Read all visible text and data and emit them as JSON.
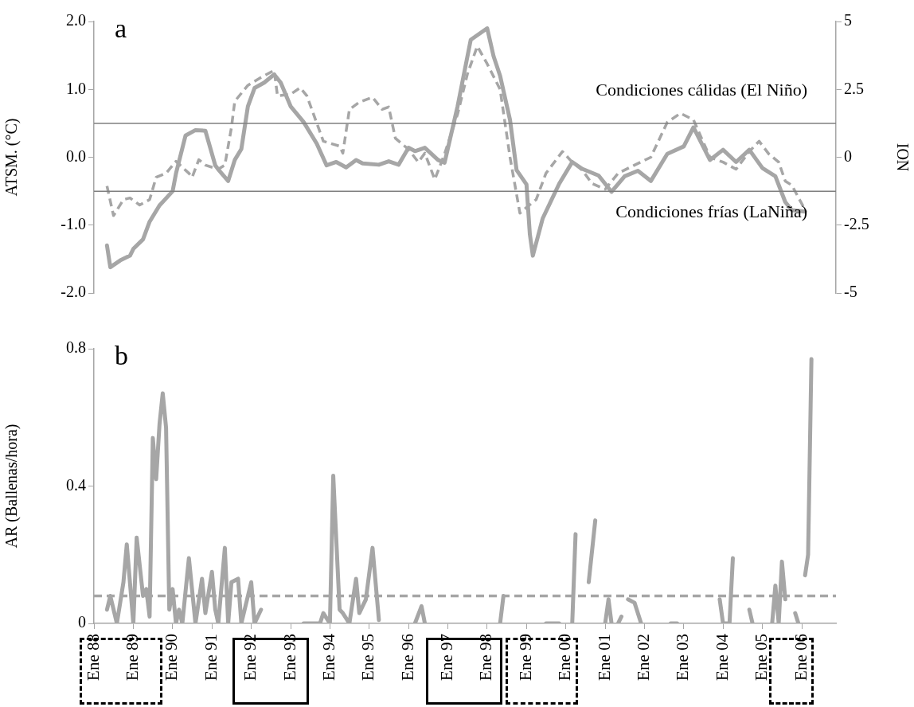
{
  "chart_data": [
    {
      "type": "line",
      "xlim": [
        "1988-01",
        "2006-11-15"
      ],
      "tick_labels": "y",
      "ylabel": "ATSM. (°C)",
      "y2label": "ION",
      "ylim": [
        -2,
        2
      ],
      "yticks": [
        {
          "value": -2,
          "label": "-2.0"
        },
        {
          "value": -1,
          "label": "-1.0"
        },
        {
          "value": 0,
          "label": "0.0"
        },
        {
          "value": 1,
          "label": "1.0"
        },
        {
          "value": 2,
          "label": "2.0"
        }
      ],
      "y2lim": [
        -5,
        5
      ],
      "y2ticks": [
        -5,
        -2.5,
        0,
        2.5,
        5
      ],
      "marker": "none",
      "series": [
        {
          "color": "#a6a6a6",
          "line_style": "solid",
          "axis": "y",
          "x": [
            "1988-05",
            "1988-06",
            "1988-09",
            "1988-12",
            "1989-01",
            "1989-04",
            "1989-06",
            "1989-09",
            "1990-01",
            "1990-02",
            "1990-05",
            "1990-08",
            "1990-11",
            "1991-02",
            "1991-03",
            "1991-06",
            "1991-08",
            "1991-10",
            "1991-12",
            "1992-02",
            "1992-05",
            "1992-08",
            "1992-10",
            "1993-01",
            "1993-05",
            "1993-09",
            "1993-12",
            "1994-03",
            "1994-06",
            "1994-09",
            "1994-11",
            "1995-04",
            "1995-07",
            "1995-10",
            "1996-01",
            "1996-03",
            "1996-06",
            "1996-10",
            "1996-12",
            "1997-04",
            "1997-08",
            "1998-01",
            "1998-03",
            "1998-05",
            "1998-08",
            "1998-10",
            "1999-01",
            "1999-02",
            "1999-03",
            "1999-06",
            "1999-11",
            "2000-03",
            "2000-06",
            "2000-11",
            "2001-03",
            "2001-07",
            "2001-11",
            "2002-03",
            "2002-08",
            "2003-01",
            "2003-04",
            "2003-09",
            "2004-01",
            "2004-05",
            "2004-09",
            "2005-01",
            "2005-05",
            "2005-08",
            "2005-10",
            "2006-02"
          ],
          "values": [
            -1.3,
            -1.62,
            -1.52,
            -1.45,
            -1.35,
            -1.21,
            -0.95,
            -0.71,
            -0.5,
            -0.24,
            0.32,
            0.4,
            0.39,
            -0.12,
            -0.18,
            -0.35,
            -0.04,
            0.12,
            0.75,
            1.02,
            1.1,
            1.22,
            1.1,
            0.75,
            0.52,
            0.2,
            -0.12,
            -0.07,
            -0.15,
            -0.04,
            -0.09,
            -0.11,
            -0.06,
            -0.11,
            0.14,
            0.09,
            0.14,
            -0.04,
            -0.08,
            0.75,
            1.73,
            1.9,
            1.49,
            1.2,
            0.55,
            -0.19,
            -0.4,
            -1.13,
            -1.45,
            -0.9,
            -0.39,
            -0.07,
            -0.17,
            -0.27,
            -0.51,
            -0.28,
            -0.2,
            -0.35,
            0.05,
            0.16,
            0.44,
            -0.04,
            0.11,
            -0.07,
            0.11,
            -0.16,
            -0.28,
            -0.66,
            -0.78,
            -0.8
          ]
        },
        {
          "color": "#a6a6a6",
          "line_style": "dashed",
          "axis": "y2",
          "x": [
            "1988-05",
            "1988-07",
            "1988-10",
            "1988-12",
            "1989-03",
            "1989-06",
            "1989-08",
            "1989-11",
            "1990-02",
            "1990-06",
            "1990-07",
            "1990-09",
            "1990-11",
            "1991-03",
            "1991-05",
            "1991-07",
            "1991-08",
            "1991-12",
            "1992-04",
            "1992-08",
            "1992-09",
            "1993-01",
            "1993-04",
            "1993-06",
            "1993-11",
            "1994-04",
            "1994-05",
            "1994-07",
            "1994-10",
            "1995-02",
            "1995-05",
            "1995-07",
            "1995-09",
            "1996-01",
            "1996-04",
            "1996-06",
            "1996-09",
            "1996-12",
            "1997-04",
            "1997-07",
            "1997-10",
            "1998-01",
            "1998-05",
            "1998-08",
            "1998-11",
            "1999-01",
            "1999-04",
            "1999-07",
            "1999-12",
            "2000-03",
            "2000-06",
            "2000-09",
            "2001-01",
            "2001-05",
            "2001-10",
            "2002-03",
            "2002-08",
            "2002-12",
            "2003-04",
            "2003-09",
            "2004-01",
            "2004-05",
            "2004-09",
            "2004-12",
            "2005-03",
            "2005-06",
            "2005-08",
            "2005-10",
            "2006-02"
          ],
          "values": [
            -1.06,
            -2.15,
            -1.56,
            -1.5,
            -1.76,
            -1.56,
            -0.74,
            -0.59,
            -0.15,
            -0.59,
            -0.74,
            -0.09,
            -0.29,
            -0.44,
            -0.29,
            1.09,
            2.06,
            2.65,
            2.94,
            3.2,
            2.26,
            2.32,
            2.56,
            2.26,
            0.59,
            0.41,
            0.15,
            1.76,
            2.03,
            2.21,
            1.76,
            1.85,
            0.7,
            0.29,
            -0.18,
            0.15,
            -0.82,
            0.12,
            1.59,
            3.06,
            4.09,
            3.44,
            2.5,
            0,
            -2.06,
            -1.85,
            -1.56,
            -0.59,
            0.21,
            -0.18,
            -0.47,
            -0.97,
            -1.18,
            -0.59,
            -0.29,
            0,
            1.29,
            1.62,
            1.38,
            0,
            -0.18,
            -0.44,
            0.21,
            0.59,
            0.12,
            -0.18,
            -0.88,
            -1.03,
            -1.94
          ]
        }
      ],
      "ref_lines": [
        {
          "axis": "y",
          "value": 0.5,
          "label": "Condiciones cálidas (El Niño)",
          "color": "#7f7f7f"
        },
        {
          "axis": "y",
          "value": -0.5,
          "label": "Condiciones frías (LaNiña)",
          "color": "#7f7f7f"
        }
      ],
      "annotations": [
        "a"
      ]
    },
    {
      "type": "line",
      "xlim": [
        "1988-01",
        "2006-11-15"
      ],
      "xticks": [
        {
          "value": "1988-01",
          "label": "Ene 88"
        },
        {
          "value": "1989-01",
          "label": "Ene 89"
        },
        {
          "value": "1990-01",
          "label": "Ene 90"
        },
        {
          "value": "1991-01",
          "label": "Ene 91"
        },
        {
          "value": "1992-01",
          "label": "Ene 92"
        },
        {
          "value": "1993-01",
          "label": "Ene 93"
        },
        {
          "value": "1994-01",
          "label": "Ene 94"
        },
        {
          "value": "1995-01",
          "label": "Ene 95"
        },
        {
          "value": "1996-01",
          "label": "Ene 96"
        },
        {
          "value": "1997-01",
          "label": "Ene 97"
        },
        {
          "value": "1998-01",
          "label": "Ene 98"
        },
        {
          "value": "1999-01",
          "label": "Ene 99"
        },
        {
          "value": "2000-01",
          "label": "Ene 00"
        },
        {
          "value": "2001-01",
          "label": "Ene 01"
        },
        {
          "value": "2002-01",
          "label": "Ene 02"
        },
        {
          "value": "2003-01",
          "label": "Ene 03"
        },
        {
          "value": "2004-01",
          "label": "Ene 04"
        },
        {
          "value": "2005-01",
          "label": "Ene 05"
        },
        {
          "value": "2006-01",
          "label": "Ene 06"
        }
      ],
      "ylabel": "AR (Ballenas/hora)",
      "ylim": [
        0,
        0.8
      ],
      "yticks": [
        0,
        0.4,
        0.8
      ],
      "marker": "none",
      "series": [
        {
          "color": "#a6a6a6",
          "line_style": "solid",
          "x": [
            "1988-05",
            "1988-06",
            "1988-08",
            "1988-10",
            "1988-11",
            "1989-01",
            "1989-02",
            "1989-04",
            "1989-05",
            "1989-06",
            "1989-07",
            "1989-08",
            "1989-09",
            "1989-10",
            "1989-11",
            "1989-12",
            "1990-01",
            "1990-02",
            "1990-03",
            "1990-04",
            "1990-06",
            "1990-08",
            "1990-10",
            "1990-11",
            "1991-01",
            "1991-02",
            "1991-03",
            "1991-05",
            "1991-06",
            "1991-07",
            "1991-09",
            "1991-10",
            "1992-01",
            "1992-02",
            "1992-04",
            "1992-10",
            "1993-05",
            "1993-10",
            "1993-11",
            "1994-01",
            "1994-02",
            "1994-04",
            "1994-05",
            "1994-07",
            "1994-09",
            "1994-10",
            "1994-12",
            "1995-02",
            "1995-04",
            "1995-09",
            "1996-03",
            "1996-05",
            "1996-06",
            "1997-06",
            "1998-05",
            "1998-06",
            "1998-12",
            "1999-07",
            "1999-11",
            "2000-01",
            "2000-03",
            "2000-04",
            "2000-06",
            "2000-08",
            "2000-10",
            "2000-12",
            "2001-01",
            "2001-02",
            "2001-03",
            "2001-04",
            "2001-05",
            "2001-06",
            "2001-07",
            "2001-08",
            "2001-10",
            "2001-12",
            "2002-04",
            "2002-09",
            "2002-11",
            "2003-05",
            "2003-12",
            "2004-01",
            "2004-03",
            "2004-04",
            "2004-06",
            "2004-09",
            "2004-10",
            "2005-01",
            "2005-04",
            "2005-05",
            "2005-06",
            "2005-07",
            "2005-08",
            "2005-09",
            "2005-11",
            "2005-12",
            "2006-01",
            "2006-02",
            "2006-03",
            "2006-04"
          ],
          "values": [
            0.04,
            0.08,
            0,
            0.12,
            0.23,
            0,
            0.25,
            0.08,
            0.1,
            0.02,
            0.54,
            0.42,
            0.58,
            0.67,
            0.57,
            0.04,
            0.1,
            0,
            0.04,
            0,
            0.19,
            0,
            0.13,
            0.03,
            0.15,
            0.04,
            0,
            0.22,
            0,
            0.12,
            0.13,
            0,
            0.12,
            0,
            0.04,
            null,
            0,
            0,
            0.03,
            0,
            0.43,
            0.04,
            0.03,
            0,
            0.13,
            0.03,
            0.07,
            0.22,
            0.01,
            null,
            0,
            0.05,
            0,
            null,
            0,
            0.08,
            null,
            0,
            0,
            null,
            0,
            0.26,
            null,
            0.12,
            0.3,
            null,
            0,
            0.07,
            0,
            null,
            0,
            0.02,
            null,
            0.07,
            0.06,
            0,
            null,
            0,
            0,
            null,
            0.07,
            0,
            0,
            0.19,
            null,
            0.04,
            0,
            null,
            0,
            0.11,
            0,
            0.18,
            0.07,
            null,
            0.03,
            0,
            null,
            0.14,
            0.2,
            0.77
          ]
        }
      ],
      "ref_lines": [
        {
          "axis": "y",
          "value": 0.08,
          "color": "#a6a6a6",
          "line_style": "dashed"
        }
      ],
      "annotations": [
        "b"
      ]
    }
  ]
}
